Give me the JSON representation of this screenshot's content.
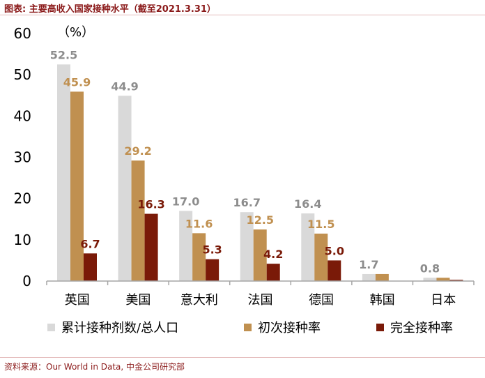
{
  "header": {
    "title": "图表: 主要高收入国家接种水平（截至2021.3.31）"
  },
  "footer": {
    "source": "资料来源：Our World in Data, 中金公司研究部"
  },
  "chart_data": {
    "type": "bar",
    "title": "",
    "ylabel": "（%）",
    "xlabel": "",
    "ylim": [
      0,
      60
    ],
    "yticks": [
      0,
      10,
      20,
      30,
      40,
      50,
      60
    ],
    "grid": false,
    "legend": "bottom",
    "categories": [
      "英国",
      "美国",
      "意大利",
      "法国",
      "德国",
      "韩国",
      "日本"
    ],
    "series": [
      {
        "name": "累计接种剂数/总人口",
        "color": "#d9d9d9",
        "label_color": "#8c8c8c",
        "values": [
          52.5,
          44.9,
          17.0,
          16.7,
          16.4,
          1.7,
          0.8
        ],
        "labels": [
          "52.5",
          "44.9",
          "17.0",
          "16.7",
          "16.4",
          "1.7",
          "0.8"
        ]
      },
      {
        "name": "初次接种率",
        "color": "#c09050",
        "label_color": "#c09050",
        "values": [
          45.9,
          29.2,
          11.6,
          12.5,
          11.5,
          1.7,
          0.8
        ],
        "labels": [
          "45.9",
          "29.2",
          "11.6",
          "12.5",
          "11.5",
          "",
          ""
        ]
      },
      {
        "name": "完全接种率",
        "color": "#7a1a08",
        "label_color": "#7a1a08",
        "values": [
          6.7,
          16.3,
          5.3,
          4.2,
          5.0,
          0.0,
          0.3
        ],
        "labels": [
          "6.7",
          "16.3",
          "5.3",
          "4.2",
          "5.0",
          "",
          ""
        ]
      }
    ]
  }
}
